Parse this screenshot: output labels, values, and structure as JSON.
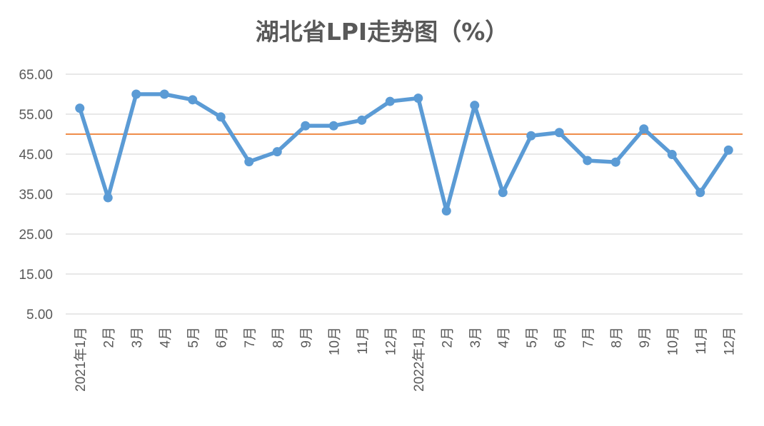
{
  "chart_data": {
    "type": "line",
    "title": "湖北省LPI走势图（%）",
    "xlabel": "",
    "ylabel": "",
    "ylim": [
      5,
      65
    ],
    "yticks": [
      "65.00",
      "55.00",
      "45.00",
      "35.00",
      "25.00",
      "15.00",
      "5.00"
    ],
    "categories": [
      "2021年1月",
      "2月",
      "3月",
      "4月",
      "5月",
      "6月",
      "7月",
      "8月",
      "9月",
      "10月",
      "11月",
      "12月",
      "2022年1月",
      "2月",
      "3月",
      "4月",
      "5月",
      "6月",
      "7月",
      "8月",
      "9月",
      "10月",
      "11月",
      "12月"
    ],
    "series": [
      {
        "color": "#5b9bd5",
        "values": [
          56.5,
          34.1,
          60.0,
          60.0,
          58.6,
          54.3,
          43.1,
          45.6,
          52.1,
          52.1,
          53.5,
          58.2,
          59.0,
          30.8,
          57.2,
          35.4,
          49.6,
          50.4,
          43.4,
          43.0,
          51.3,
          44.9,
          35.4,
          46.0
        ]
      }
    ],
    "reference_line": {
      "value": 50,
      "color": "#ed7d31"
    },
    "grid": true,
    "gridline_color": "#d9d9d9"
  }
}
